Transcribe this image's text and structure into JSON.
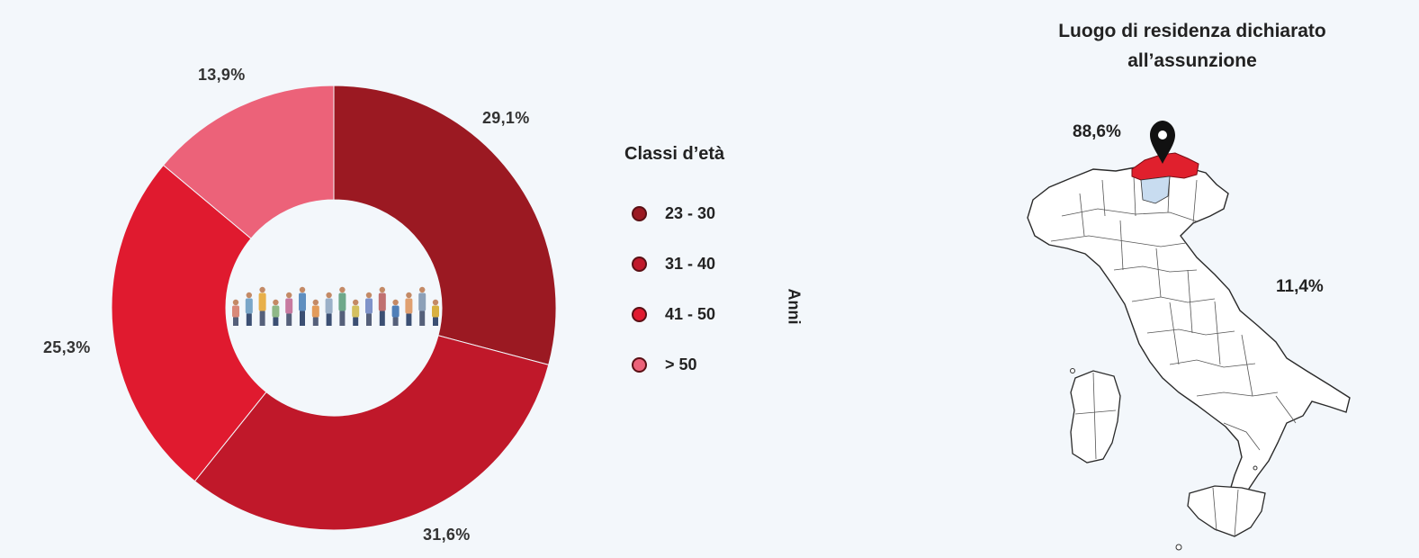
{
  "chart_data": {
    "type": "pie",
    "donut": true,
    "legend_title": "Classi d’età",
    "unit": "Anni",
    "categories": [
      "23 - 30",
      "31 - 40",
      "41 - 50",
      "> 50"
    ],
    "values": [
      29.1,
      31.6,
      25.3,
      13.9
    ],
    "labels": [
      "29,1%",
      "31,6%",
      "25,3%",
      "13,9%"
    ],
    "colors": [
      "#9b1922",
      "#c0182a",
      "#e01a2f",
      "#ec6279"
    ],
    "legend_position": "right"
  },
  "map_panel": {
    "title_line1": "Luogo di residenza dichiarato",
    "title_line2": "all’assunzione",
    "highlight_value": "88,6%",
    "other_value": "11,4%",
    "highlight_color": "#e0202d",
    "marker_icon": "map-pin-icon"
  }
}
